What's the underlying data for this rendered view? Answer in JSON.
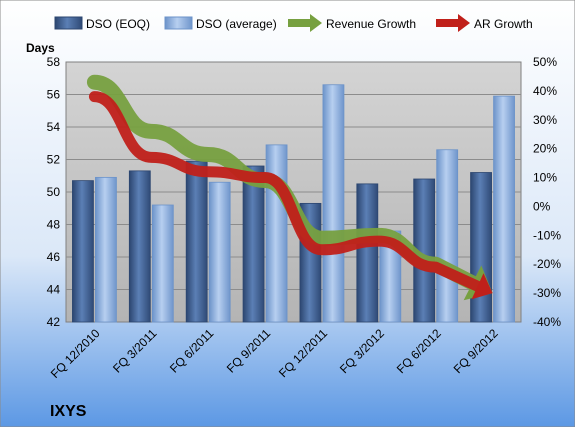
{
  "company": "IXYS",
  "chart_data": {
    "type": "bar",
    "categories": [
      "FQ 12/2010",
      "FQ 3/2011",
      "FQ 6/2011",
      "FQ 9/2011",
      "FQ 12/2011",
      "FQ 3/2012",
      "FQ 6/2012",
      "FQ 9/2012"
    ],
    "series": [
      {
        "name": "DSO (EOQ)",
        "kind": "bar",
        "axis": "left",
        "values": [
          50.7,
          51.3,
          51.9,
          51.6,
          49.3,
          50.5,
          50.8,
          51.2
        ]
      },
      {
        "name": "DSO (average)",
        "kind": "bar",
        "axis": "left",
        "values": [
          50.9,
          49.2,
          50.6,
          52.9,
          56.6,
          47.6,
          52.6,
          55.9
        ]
      },
      {
        "name": "Revenue Growth",
        "kind": "arrow-line",
        "axis": "right",
        "values": [
          43,
          26,
          18,
          9,
          -11,
          -10,
          -20,
          -30
        ]
      },
      {
        "name": "AR Growth",
        "kind": "arrow-line",
        "axis": "right",
        "values": [
          38,
          17,
          12,
          10,
          -15,
          -12,
          -21,
          -30
        ]
      }
    ],
    "ylabel": "Days",
    "ylim": [
      42,
      58
    ],
    "yticks": [
      42,
      44,
      46,
      48,
      50,
      52,
      54,
      56,
      58
    ],
    "y2lim": [
      -40,
      50
    ],
    "y2ticks": [
      "-40%",
      "-30%",
      "-20%",
      "-10%",
      "0%",
      "10%",
      "20%",
      "30%",
      "40%",
      "50%"
    ],
    "grid": true,
    "legend_position": "top",
    "colors": {
      "dso_eoq": "#3d5a8a",
      "dso_avg": "#8aaee0",
      "revenue_growth": "#77a040",
      "ar_growth": "#c0201a",
      "plot_bg": "#c0c0c0",
      "page_bg": "#6aa0e0"
    }
  }
}
